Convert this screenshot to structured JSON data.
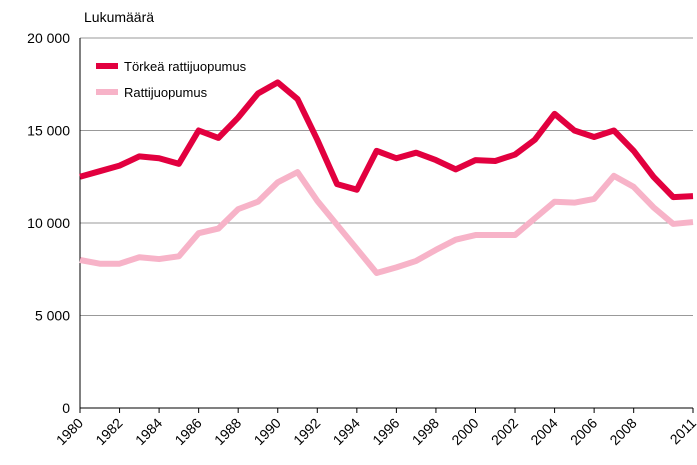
{
  "chart_data": {
    "type": "line",
    "y_axis_label": "Lukumäärä",
    "x": [
      1980,
      1981,
      1982,
      1983,
      1984,
      1985,
      1986,
      1987,
      1988,
      1989,
      1990,
      1991,
      1992,
      1993,
      1994,
      1995,
      1996,
      1997,
      1998,
      1999,
      2000,
      2001,
      2002,
      2003,
      2004,
      2005,
      2006,
      2007,
      2008,
      2009,
      2010,
      2011
    ],
    "series": [
      {
        "name": "Törkeä rattijuopumus",
        "color": "#e2003f",
        "values": [
          12500,
          12800,
          13100,
          13600,
          13500,
          13200,
          15000,
          14600,
          15700,
          17000,
          17600,
          16700,
          14500,
          12100,
          11800,
          13900,
          13500,
          13800,
          13400,
          12900,
          13400,
          13350,
          13700,
          14500,
          15900,
          15000,
          14650,
          15000,
          13900,
          12500,
          11400,
          11450
        ]
      },
      {
        "name": "Rattijuopumus",
        "color": "#f7b3c8",
        "values": [
          8000,
          7800,
          7800,
          8150,
          8050,
          8200,
          9450,
          9700,
          10750,
          11150,
          12200,
          12750,
          11200,
          9900,
          8600,
          7300,
          7600,
          7950,
          8550,
          9100,
          9350,
          9350,
          9350,
          10250,
          11150,
          11100,
          11300,
          12550,
          11950,
          10850,
          9950,
          10050
        ]
      }
    ],
    "xlim": [
      1980,
      2011
    ],
    "xticks": [
      1980,
      1982,
      1984,
      1986,
      1988,
      1990,
      1992,
      1994,
      1996,
      1998,
      2000,
      2002,
      2004,
      2006,
      2008,
      2011
    ],
    "ylim": [
      0,
      20000
    ],
    "yticks": [
      0,
      {
        "value": 5000,
        "label": "5 000"
      },
      {
        "value": 10000,
        "label": "10 000"
      },
      {
        "value": 15000,
        "label": "15 000"
      },
      {
        "value": 20000,
        "label": "20 000"
      }
    ],
    "grid": true,
    "legend": "top-left"
  }
}
